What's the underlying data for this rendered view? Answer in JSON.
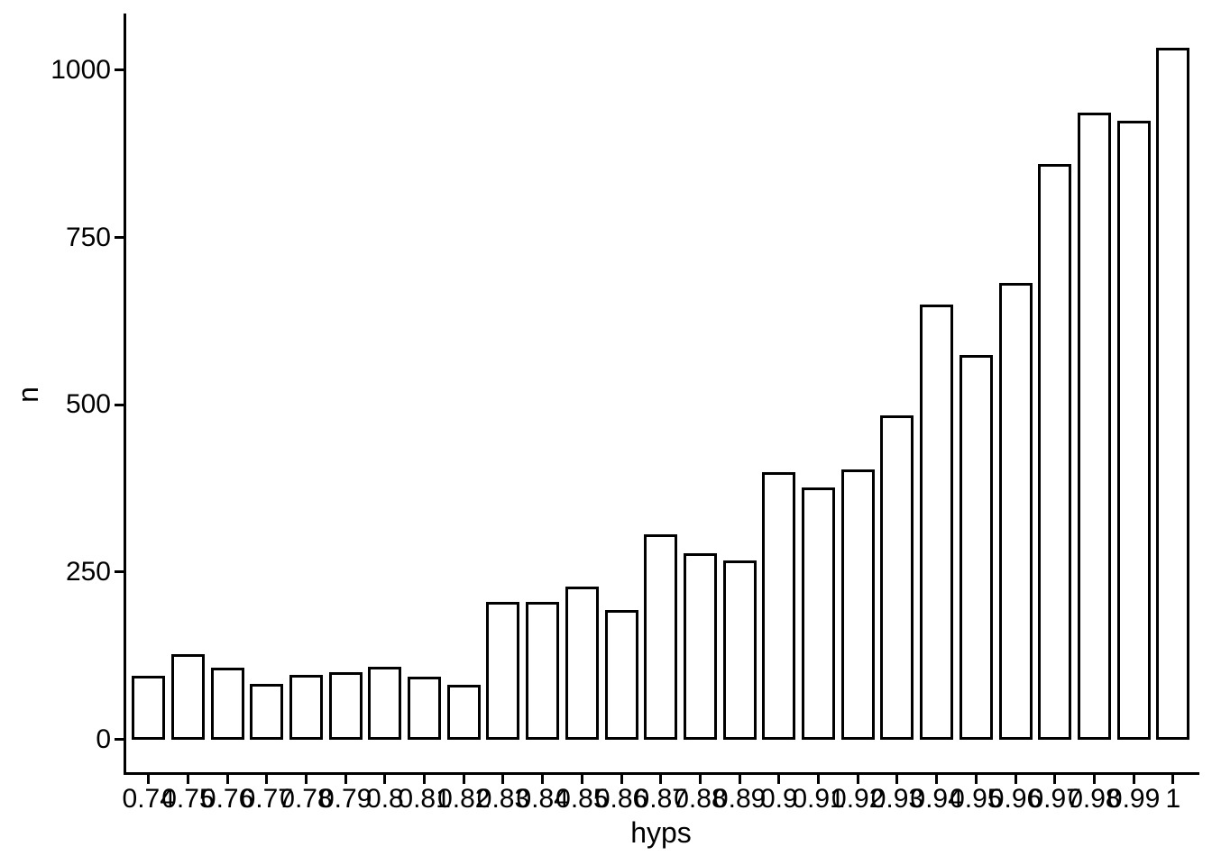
{
  "figure": {
    "background": "#ffffff",
    "bar_fill": "#ffffff",
    "bar_stroke": "#000000",
    "axis_color": "#000000",
    "text_color": "#000000"
  },
  "chart_data": {
    "type": "bar",
    "title": "",
    "xlabel": "hyps",
    "ylabel": "n",
    "categories": [
      "0.74",
      "0.75",
      "0.76",
      "0.77",
      "0.78",
      "0.79",
      "0.8",
      "0.81",
      "0.82",
      "0.83",
      "0.84",
      "0.85",
      "0.86",
      "0.87",
      "0.88",
      "0.89",
      "0.9",
      "0.91",
      "0.92",
      "0.93",
      "0.94",
      "0.95",
      "0.96",
      "0.97",
      "0.98",
      "0.99",
      "1"
    ],
    "values": [
      95,
      127,
      107,
      83,
      96,
      100,
      109,
      94,
      81,
      206,
      206,
      229,
      194,
      307,
      278,
      268,
      400,
      377,
      403,
      484,
      650,
      575,
      682,
      860,
      937,
      925,
      1033
    ],
    "y_ticks": [
      0,
      250,
      500,
      750,
      1000
    ],
    "ylim": [
      0,
      1086
    ],
    "grid": "off",
    "legend": "none",
    "bar_outline": "black",
    "bar_fill_desc": "white"
  }
}
